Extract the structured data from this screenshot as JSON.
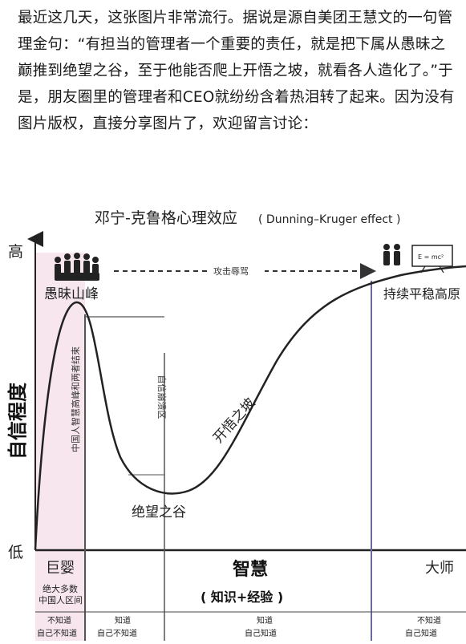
{
  "intro_text": "最近这几天，这张图片非常流行。据说是源自美团王慧文的一句管理金句：“有担当的管理者一个重要的责任，就是把下属从愚昧之巅推到绝望之谷，至于他能否爬上开悟之坡，就看各人造化了。”于是，朋友圈里的管理者和CEO就纷纷含着热泪转了起来。因为没有图片版权，直接分享图片了，欢迎留言讨论：",
  "diagram": {
    "title": "邓宁-克鲁格心理效应",
    "title_en": "( Dunning–Kruger effect )",
    "y_axis_label": "自信程度",
    "y_high": "高",
    "y_low": "低",
    "peak_label": "愚昧山峰",
    "valley_label": "绝望之谷",
    "slope_label": "开悟之坡",
    "plateau_label": "持续平稳高原",
    "attack_label": "攻击辱骂",
    "vertical_note_1": "中国人智慧高峰和两者结束",
    "vertical_note_2": "自信崩溃区",
    "formula": "E = mc²",
    "bottom": {
      "baby": "巨婴",
      "wisdom": "智慧",
      "wisdom_sub": "( 知识+经验 )",
      "master": "大师",
      "majority_1": "绝大多数",
      "majority_2": "中国人区间",
      "col1_top": "不知道",
      "col1_bottom": "自己不知道",
      "col2_top": "知道",
      "col2_bottom": "自己不知道",
      "col3_top": "知道",
      "col3_bottom": "自己知道",
      "col4_top": "不知道",
      "col4_bottom": "自己知道"
    },
    "colors": {
      "pink_band": "#f7e6ee",
      "purple_line": "#6a6aa0",
      "curve": "#222222"
    },
    "icons": [
      "group-people-icon",
      "two-people-icon",
      "blackboard-icon"
    ]
  }
}
